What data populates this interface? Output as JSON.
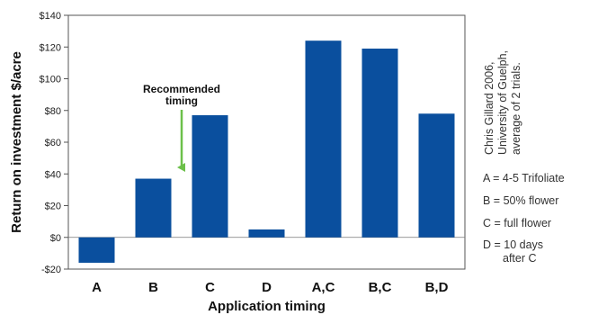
{
  "chart_data": {
    "type": "bar",
    "categories": [
      "A",
      "B",
      "C",
      "D",
      "A,C",
      "B,C",
      "B,D"
    ],
    "values": [
      -16,
      37,
      77,
      5,
      124,
      119,
      78
    ],
    "xlabel": "Application timing",
    "ylabel": "Return on investment $/acre",
    "ylim": [
      -20,
      140
    ],
    "yticks": [
      -20,
      0,
      20,
      40,
      60,
      80,
      100,
      120,
      140
    ],
    "ytick_labels": [
      "-$20",
      "$0",
      "$20",
      "$40",
      "$60",
      "$80",
      "$100",
      "$120",
      "$140"
    ],
    "grid": false,
    "bar_color": "#0a4f9e",
    "annotation": {
      "lines": [
        "Recommended",
        "timing"
      ],
      "target_category": "B",
      "arrow_color": "#6cc04a"
    },
    "source_note": [
      "Chris Gillard 2006,",
      "University of Guelph,",
      "average of 2 trials."
    ],
    "legend": [
      [
        "A = 4-5 Trifoliate"
      ],
      [
        "B = 50% flower"
      ],
      [
        "C = full flower"
      ],
      [
        "D = 10 days",
        "after C"
      ]
    ]
  }
}
